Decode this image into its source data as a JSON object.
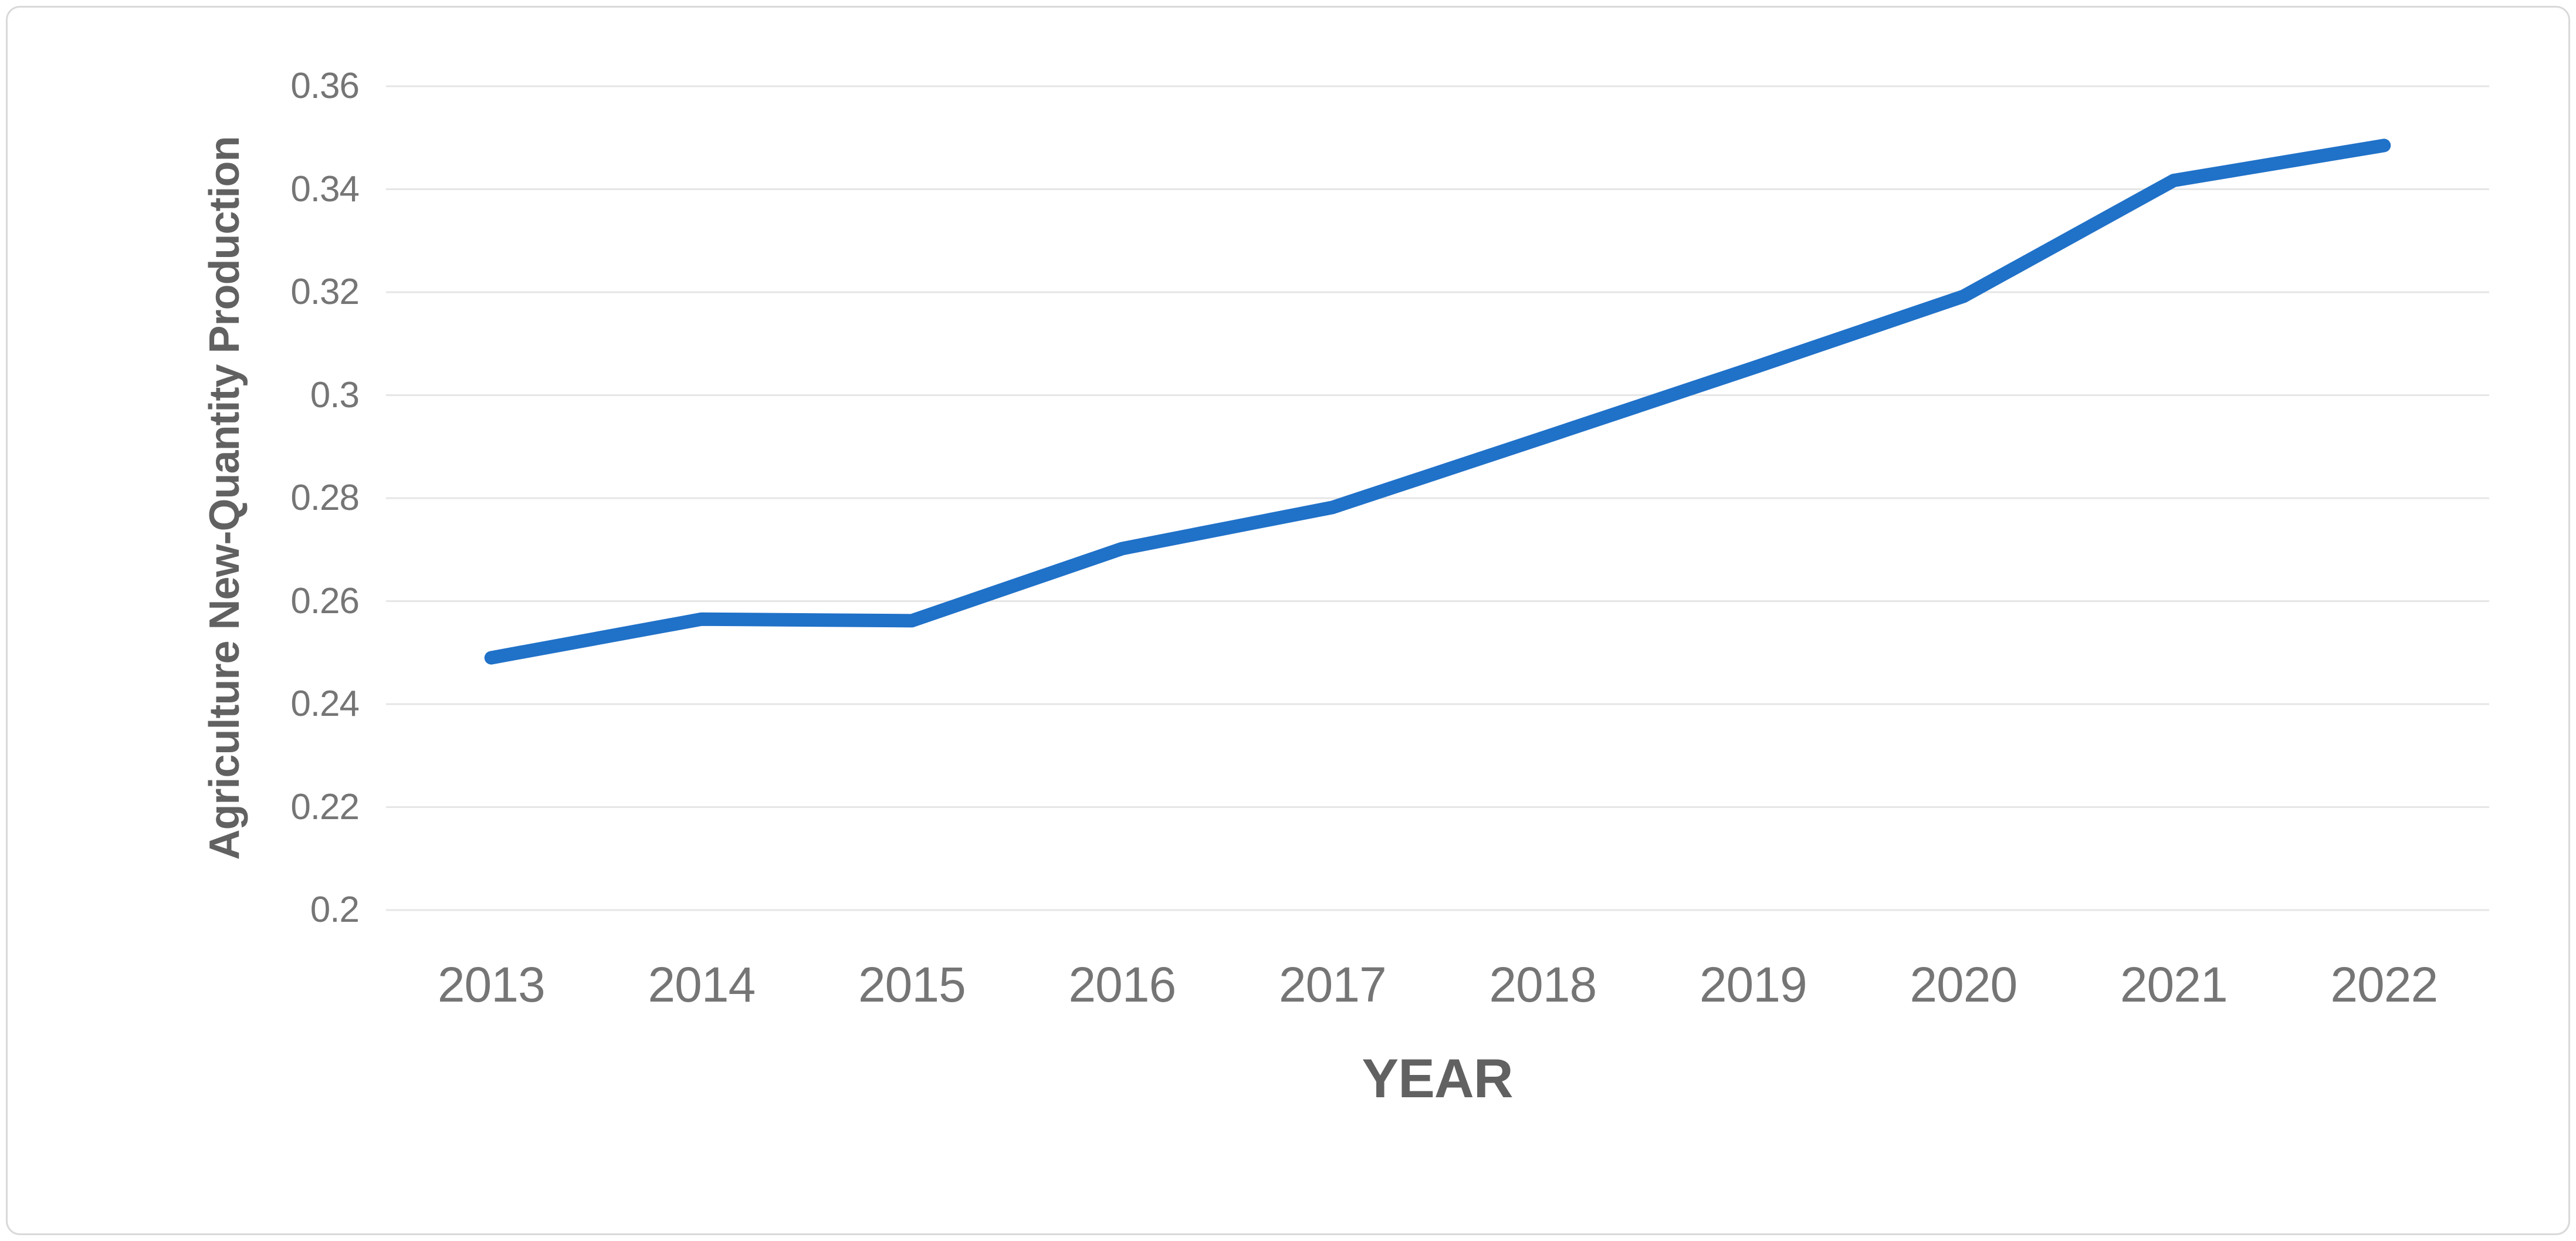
{
  "chart_data": {
    "type": "line",
    "title": "",
    "xlabel": "YEAR",
    "ylabel": "Agriculture New-Quantity Production",
    "categories": [
      "2013",
      "2014",
      "2015",
      "2016",
      "2017",
      "2018",
      "2019",
      "2020",
      "2021",
      "2022"
    ],
    "series": [
      {
        "name": "Agriculture New-Quantity Production",
        "values": [
          0.249,
          0.2565,
          0.2562,
          0.2702,
          0.2782,
          0.2917,
          0.3053,
          0.3192,
          0.3417,
          0.3485
        ]
      }
    ],
    "ylim": [
      0.2,
      0.36
    ],
    "y_tick_step": 0.02,
    "y_tick_labels": [
      "0.36",
      "0.34",
      "0.32",
      "0.3",
      "0.28",
      "0.26",
      "0.24",
      "0.22",
      "0.2"
    ],
    "grid": true,
    "gridline_color": "#e6e6e6",
    "legend": false,
    "line_color": "#2071c8",
    "line_width": 23,
    "frame_color": "#d9d9d9",
    "tick_label_color": "#757575",
    "axis_title_color": "#616161"
  }
}
